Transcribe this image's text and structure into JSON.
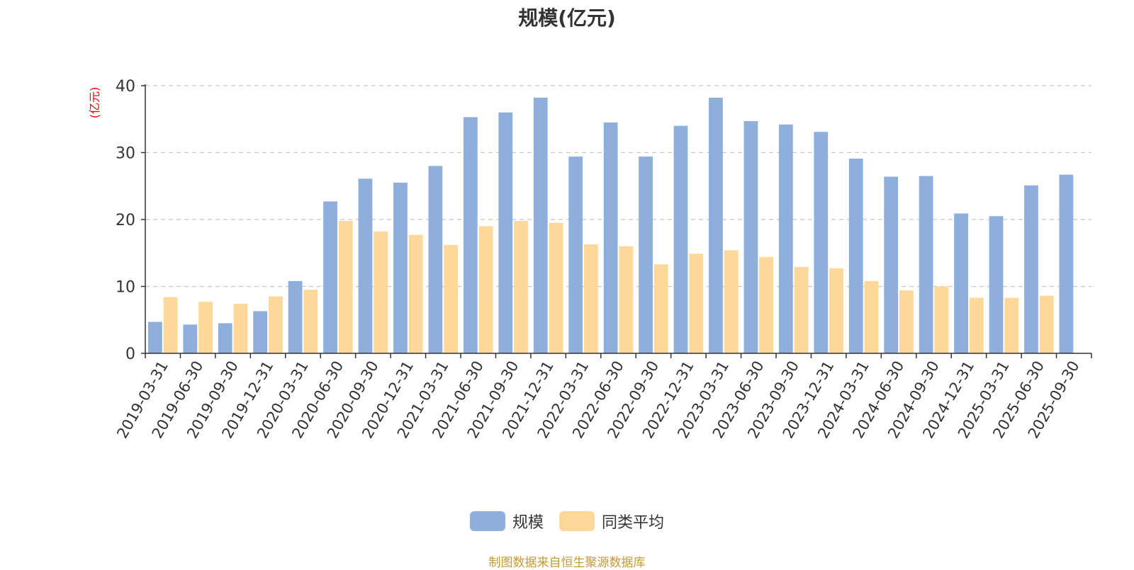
{
  "chart_data": {
    "type": "bar",
    "title": "规模(亿元)",
    "ylabel": "(亿元)",
    "xlabel": "",
    "ylim": [
      0,
      40
    ],
    "yticks": [
      0,
      10,
      20,
      30,
      40
    ],
    "grid": true,
    "legend_position": "bottom",
    "categories": [
      "2019-03-31",
      "2019-06-30",
      "2019-09-30",
      "2019-12-31",
      "2020-03-31",
      "2020-06-30",
      "2020-09-30",
      "2020-12-31",
      "2021-03-31",
      "2021-06-30",
      "2021-09-30",
      "2021-12-31",
      "2022-03-31",
      "2022-06-30",
      "2022-09-30",
      "2022-12-31",
      "2023-03-31",
      "2023-06-30",
      "2023-09-30",
      "2023-12-31",
      "2024-03-31",
      "2024-06-30",
      "2024-09-30",
      "2024-12-31",
      "2025-03-31",
      "2025-06-30",
      "2025-09-30"
    ],
    "series": [
      {
        "name": "规模",
        "color": "#8eaedc",
        "values": [
          4.7,
          4.3,
          4.5,
          6.3,
          10.8,
          22.7,
          26.1,
          25.5,
          28.0,
          35.3,
          36.0,
          38.2,
          29.4,
          34.5,
          29.4,
          34.0,
          38.2,
          34.7,
          34.2,
          33.1,
          29.1,
          26.4,
          26.5,
          20.9,
          20.5,
          25.1,
          26.7
        ]
      },
      {
        "name": "同类平均",
        "color": "#fdd898",
        "values": [
          8.4,
          7.7,
          7.4,
          8.5,
          9.5,
          19.8,
          18.2,
          17.7,
          16.2,
          19.0,
          19.8,
          19.5,
          16.3,
          16.0,
          13.3,
          14.9,
          15.4,
          14.4,
          12.9,
          12.7,
          10.8,
          9.4,
          10.0,
          8.3,
          8.3,
          8.6,
          null
        ]
      }
    ]
  },
  "footer": "制图数据来自恒生聚源数据库"
}
